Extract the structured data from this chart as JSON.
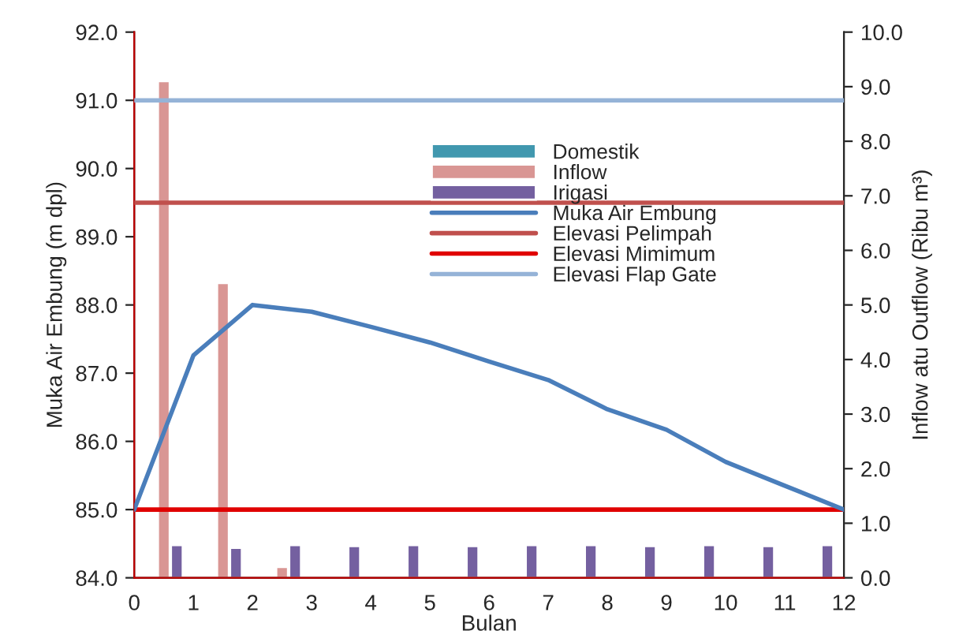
{
  "chart_data": {
    "type": "bar",
    "xlabel": "Bulan",
    "ylabel": "Muka Air Embung (m dpl)",
    "y2label": "Inflow atu Outflow (Ribu m³)",
    "xlim": [
      0,
      12
    ],
    "xticks": [
      0,
      1,
      2,
      3,
      4,
      5,
      6,
      7,
      8,
      9,
      10,
      11,
      12
    ],
    "ylim": [
      84,
      92
    ],
    "yticks": [
      {
        "value": 84,
        "label": "84.0"
      },
      {
        "value": 85,
        "label": "85.0"
      },
      {
        "value": 86,
        "label": "86.0"
      },
      {
        "value": 87,
        "label": "87.0"
      },
      {
        "value": 88,
        "label": "88.0"
      },
      {
        "value": 89,
        "label": "89.0"
      },
      {
        "value": 90,
        "label": "90.0"
      },
      {
        "value": 91,
        "label": "91.0"
      },
      {
        "value": 92,
        "label": "92.0"
      }
    ],
    "y2lim": [
      0,
      10
    ],
    "y2ticks": [
      {
        "value": 0,
        "label": "0.0"
      },
      {
        "value": 1,
        "label": "1.0"
      },
      {
        "value": 2,
        "label": "2.0"
      },
      {
        "value": 3,
        "label": "3.0"
      },
      {
        "value": 4,
        "label": "4.0"
      },
      {
        "value": 5,
        "label": "5.0"
      },
      {
        "value": 6,
        "label": "6.0"
      },
      {
        "value": 7,
        "label": "7.0"
      },
      {
        "value": 8,
        "label": "8.0"
      },
      {
        "value": 9,
        "label": "9.0"
      },
      {
        "value": 10,
        "label": "10.0"
      }
    ],
    "grid": false,
    "legend": "top",
    "series": [
      {
        "name": "Domestik",
        "axis": "y2",
        "color": "#4198af"
      },
      {
        "name": "Inflow",
        "axis": "y2",
        "color": "#d99694",
        "x": [
          0.5,
          1.5,
          2.5
        ],
        "values": [
          9.1,
          5.4,
          0.2
        ]
      },
      {
        "name": "Irigasi",
        "axis": "y2",
        "color": "#7460a0",
        "x": [
          0.72,
          1.72,
          2.72,
          3.72,
          4.72,
          5.72,
          6.72,
          7.72,
          8.72,
          9.72,
          10.72,
          11.72
        ],
        "values": [
          0.6,
          0.55,
          0.6,
          0.58,
          0.6,
          0.58,
          0.6,
          0.6,
          0.58,
          0.6,
          0.58,
          0.6
        ]
      },
      {
        "name": "Muka Air Embung",
        "type": "line",
        "color": "#4a7ebb",
        "x": [
          0,
          1,
          2,
          3,
          4,
          5,
          6,
          7,
          8,
          9,
          10,
          11,
          12
        ],
        "values": [
          85.0,
          87.26,
          88.0,
          87.9,
          87.68,
          87.45,
          87.17,
          86.9,
          86.47,
          86.17,
          85.7,
          85.35,
          85.0
        ]
      }
    ],
    "ref_lines": [
      {
        "axis": "y",
        "value": 89.5,
        "label": "Elevasi Pelimpah",
        "color": "#c0504d"
      },
      {
        "axis": "y",
        "value": 85.0,
        "label": "Elevasi Mimimum",
        "color": "#e00000"
      },
      {
        "axis": "y",
        "value": 91.0,
        "label": "Elevasi Flap Gate",
        "color": "#95b3d7"
      }
    ]
  }
}
